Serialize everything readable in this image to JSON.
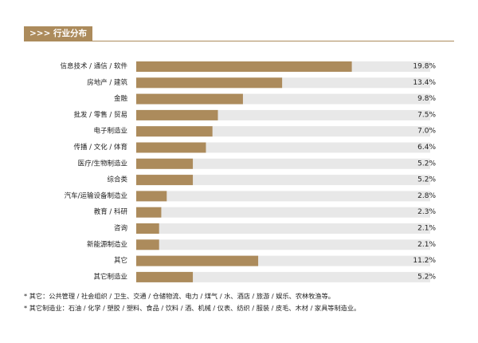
{
  "header": {
    "title": ">>> 行业分布"
  },
  "colors": {
    "accent": "#ac8b5c",
    "track": "#e8e8e8"
  },
  "chart_data": {
    "type": "bar",
    "orientation": "horizontal",
    "title": "",
    "xlabel": "",
    "ylabel": "",
    "xlim": [
      0,
      27
    ],
    "grid": false,
    "legend": "none",
    "unit": "%",
    "categories": [
      "信息技术 / 通信 / 软件",
      "房地产 / 建筑",
      "金融",
      "批发 / 零售 / 贸易",
      "电子制造业",
      "传播 / 文化 / 体育",
      "医疗/生物制造业",
      "综合类",
      "汽车/运输设备制造业",
      "教育 / 科研",
      "咨询",
      "新能源制造业",
      "其它",
      "其它制造业"
    ],
    "values": [
      19.8,
      13.4,
      9.8,
      7.5,
      7.0,
      6.4,
      5.2,
      5.2,
      2.8,
      2.3,
      2.1,
      2.1,
      11.2,
      5.2
    ],
    "value_labels": [
      "19.8%",
      "13.4%",
      "9.8%",
      "7.5%",
      "7.0%",
      "6.4%",
      "5.2%",
      "5.2%",
      "2.8%",
      "2.3%",
      "2.1%",
      "2.1%",
      "11.2%",
      "5.2%"
    ]
  },
  "notes": [
    "* 其它：公共管理 / 社会组织 / 卫生、交通 / 仓储物流、电力 / 煤气 / 水、酒店 / 旅游 / 娱乐、农林牧渔等。",
    "* 其它制造业：石油 / 化学 / 塑胶 / 塑料、食品 / 饮料 / 酒、机械 / 仪表、纺织 / 服装 / 皮毛、木材 / 家具等制造业。"
  ]
}
